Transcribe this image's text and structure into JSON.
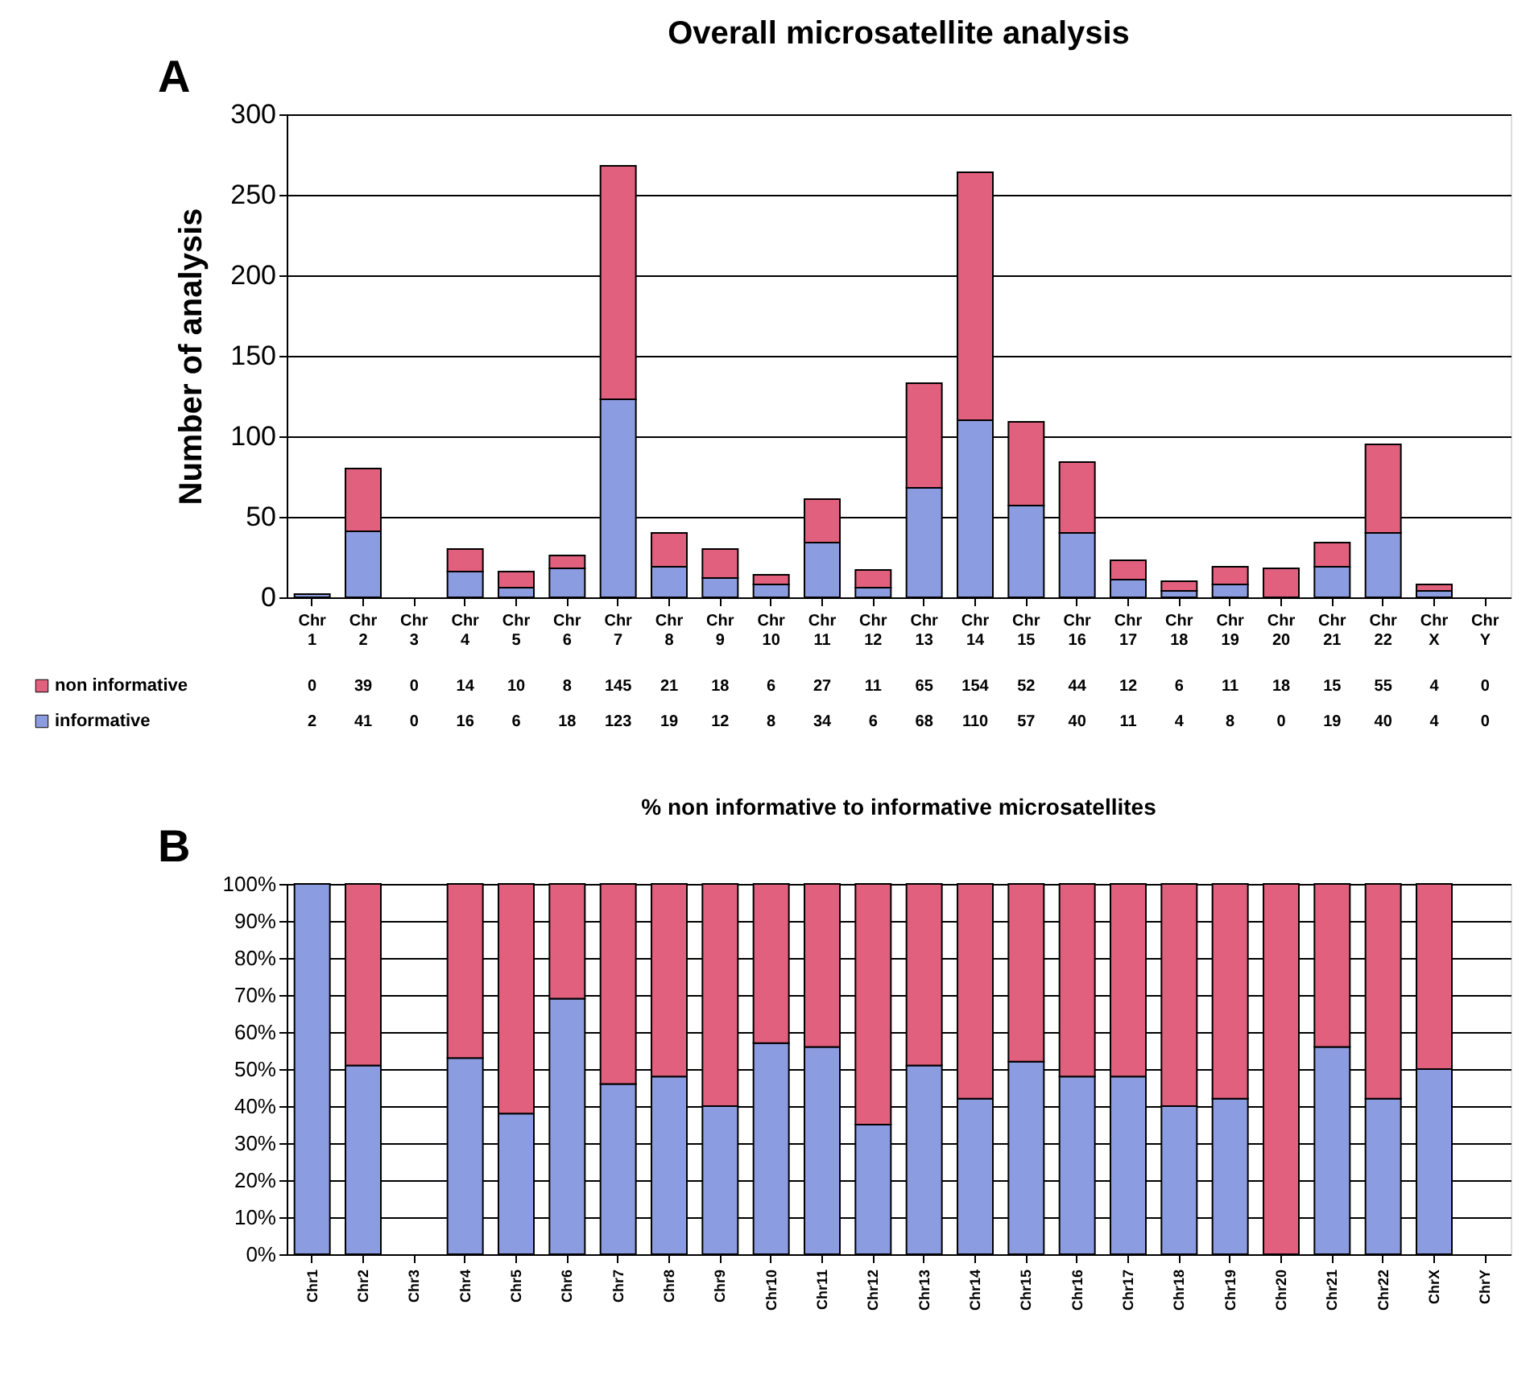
{
  "chart_data": [
    {
      "type": "bar",
      "title": "Overall microsatellite analysis",
      "ylabel": "Number of analysis",
      "annotations": [
        "A"
      ],
      "categories": [
        "Chr 1",
        "Chr 2",
        "Chr 3",
        "Chr 4",
        "Chr 5",
        "Chr 6",
        "Chr 7",
        "Chr 8",
        "Chr 9",
        "Chr 10",
        "Chr 11",
        "Chr 12",
        "Chr 13",
        "Chr 14",
        "Chr 15",
        "Chr 16",
        "Chr 17",
        "Chr 18",
        "Chr 19",
        "Chr 20",
        "Chr 21",
        "Chr 22",
        "Chr X",
        "Chr Y"
      ],
      "stacked": true,
      "series": [
        {
          "name": "informative",
          "color": "#8c9ce0",
          "values": [
            2,
            41,
            0,
            16,
            6,
            18,
            123,
            19,
            12,
            8,
            34,
            6,
            68,
            110,
            57,
            40,
            11,
            4,
            8,
            0,
            19,
            40,
            4,
            0
          ]
        },
        {
          "name": "non informative",
          "color": "#e0607e",
          "values": [
            0,
            39,
            0,
            14,
            10,
            8,
            145,
            21,
            18,
            6,
            27,
            11,
            65,
            154,
            52,
            44,
            12,
            6,
            11,
            18,
            15,
            55,
            4,
            0
          ]
        }
      ],
      "ylim": [
        0,
        300
      ],
      "yticks": [
        0,
        50,
        100,
        150,
        200,
        250,
        300
      ],
      "grid": "y",
      "legend": "bottom left",
      "data_labels": true
    },
    {
      "type": "bar",
      "title": "% non informative to informative microsatellites",
      "annotations": [
        "B"
      ],
      "categories": [
        "Chr1",
        "Chr2",
        "Chr3",
        "Chr4",
        "Chr5",
        "Chr6",
        "Chr7",
        "Chr8",
        "Chr9",
        "Chr10",
        "Chr11",
        "Chr12",
        "Chr13",
        "Chr14",
        "Chr15",
        "Chr16",
        "Chr17",
        "Chr18",
        "Chr19",
        "Chr20",
        "Chr21",
        "Chr22",
        "ChrX",
        "ChrY"
      ],
      "stacked": true,
      "series": [
        {
          "color": "#8c9ce0",
          "values": [
            100,
            51,
            null,
            53,
            38,
            69,
            46,
            48,
            40,
            57,
            56,
            35,
            51,
            42,
            52,
            48,
            48,
            40,
            42,
            0,
            56,
            42,
            50,
            null
          ]
        },
        {
          "color": "#e0607e",
          "values": [
            0,
            49,
            null,
            47,
            62,
            31,
            54,
            52,
            60,
            43,
            44,
            65,
            49,
            58,
            48,
            52,
            52,
            60,
            58,
            100,
            44,
            58,
            50,
            null
          ]
        }
      ],
      "ylim": [
        0,
        100
      ],
      "yticks": [
        {
          "value": 0,
          "label": "0%"
        },
        {
          "value": 10,
          "label": "10%"
        },
        {
          "value": 20,
          "label": "20%"
        },
        {
          "value": 30,
          "label": "30%"
        },
        {
          "value": 40,
          "label": "40%"
        },
        {
          "value": 50,
          "label": "50%"
        },
        {
          "value": 60,
          "label": "60%"
        },
        {
          "value": 70,
          "label": "70%"
        },
        {
          "value": 80,
          "label": "80%"
        },
        {
          "value": 90,
          "label": "90%"
        },
        {
          "value": 100,
          "label": "100%"
        }
      ],
      "grid": "y"
    }
  ]
}
